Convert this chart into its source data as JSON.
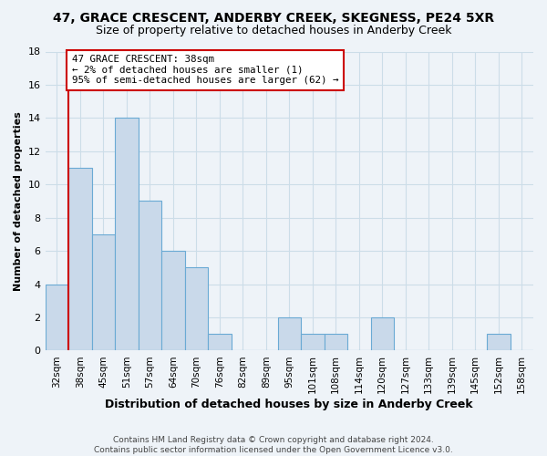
{
  "title": "47, GRACE CRESCENT, ANDERBY CREEK, SKEGNESS, PE24 5XR",
  "subtitle": "Size of property relative to detached houses in Anderby Creek",
  "xlabel": "Distribution of detached houses by size in Anderby Creek",
  "ylabel": "Number of detached properties",
  "footer_lines": [
    "Contains HM Land Registry data © Crown copyright and database right 2024.",
    "Contains public sector information licensed under the Open Government Licence v3.0."
  ],
  "bins": [
    "32sqm",
    "38sqm",
    "45sqm",
    "51sqm",
    "57sqm",
    "64sqm",
    "70sqm",
    "76sqm",
    "82sqm",
    "89sqm",
    "95sqm",
    "101sqm",
    "108sqm",
    "114sqm",
    "120sqm",
    "127sqm",
    "133sqm",
    "139sqm",
    "145sqm",
    "152sqm",
    "158sqm"
  ],
  "counts": [
    4,
    11,
    7,
    14,
    9,
    6,
    5,
    1,
    0,
    0,
    2,
    1,
    1,
    0,
    2,
    0,
    0,
    0,
    0,
    1,
    0
  ],
  "bar_color": "#c9d9ea",
  "bar_edge_color": "#6aaad4",
  "vline_x_index": 1,
  "vline_color": "#cc0000",
  "annotation_line1": "47 GRACE CRESCENT: 38sqm",
  "annotation_line2": "← 2% of detached houses are smaller (1)",
  "annotation_line3": "95% of semi-detached houses are larger (62) →",
  "annotation_box_edge_color": "#cc0000",
  "annotation_box_face_color": "#ffffff",
  "ylim": [
    0,
    18
  ],
  "yticks": [
    0,
    2,
    4,
    6,
    8,
    10,
    12,
    14,
    16,
    18
  ],
  "grid_color": "#ccdde8",
  "background_color": "#eef3f8",
  "title_fontsize": 10,
  "subtitle_fontsize": 9,
  "xlabel_fontsize": 9,
  "ylabel_fontsize": 8,
  "tick_fontsize": 7.5,
  "footer_fontsize": 6.5
}
